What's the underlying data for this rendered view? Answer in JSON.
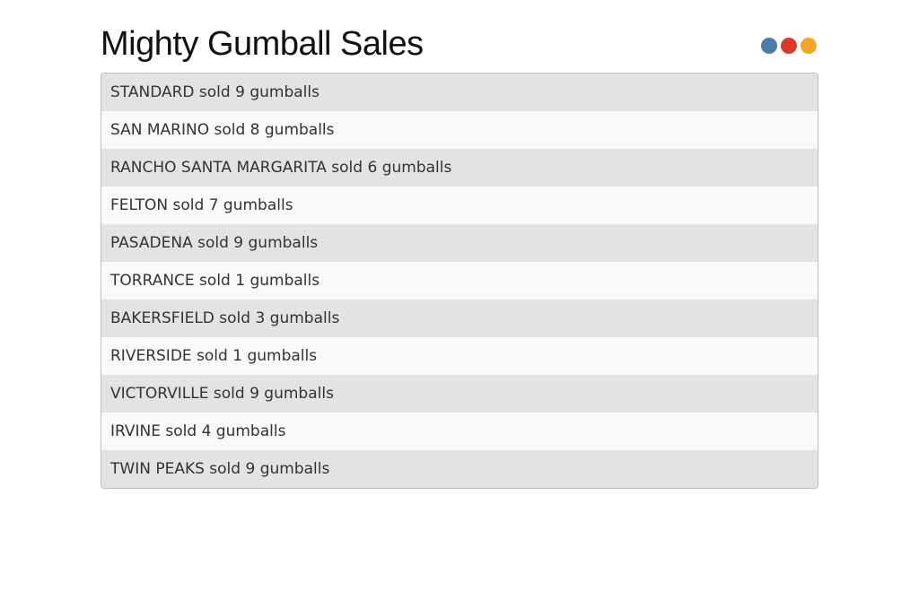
{
  "header": {
    "title": "Mighty Gumball Sales",
    "dots": [
      {
        "name": "blue-dot",
        "color": "#4a7ea8"
      },
      {
        "name": "red-dot",
        "color": "#d93a2a"
      },
      {
        "name": "orange-dot",
        "color": "#f5a623"
      }
    ]
  },
  "sales": [
    {
      "city": "STANDARD",
      "count": 9,
      "text": "STANDARD sold 9 gumballs"
    },
    {
      "city": "SAN MARINO",
      "count": 8,
      "text": "SAN MARINO sold 8 gumballs"
    },
    {
      "city": "RANCHO SANTA MARGARITA",
      "count": 6,
      "text": "RANCHO SANTA MARGARITA sold 6 gumballs"
    },
    {
      "city": "FELTON",
      "count": 7,
      "text": "FELTON sold 7 gumballs"
    },
    {
      "city": "PASADENA",
      "count": 9,
      "text": "PASADENA sold 9 gumballs"
    },
    {
      "city": "TORRANCE",
      "count": 1,
      "text": "TORRANCE sold 1 gumballs"
    },
    {
      "city": "BAKERSFIELD",
      "count": 3,
      "text": "BAKERSFIELD sold 3 gumballs"
    },
    {
      "city": "RIVERSIDE",
      "count": 1,
      "text": "RIVERSIDE sold 1 gumballs"
    },
    {
      "city": "VICTORVILLE",
      "count": 9,
      "text": "VICTORVILLE sold 9 gumballs"
    },
    {
      "city": "IRVINE",
      "count": 4,
      "text": "IRVINE sold 4 gumballs"
    },
    {
      "city": "TWIN PEAKS",
      "count": 9,
      "text": "TWIN PEAKS sold 9 gumballs"
    }
  ]
}
